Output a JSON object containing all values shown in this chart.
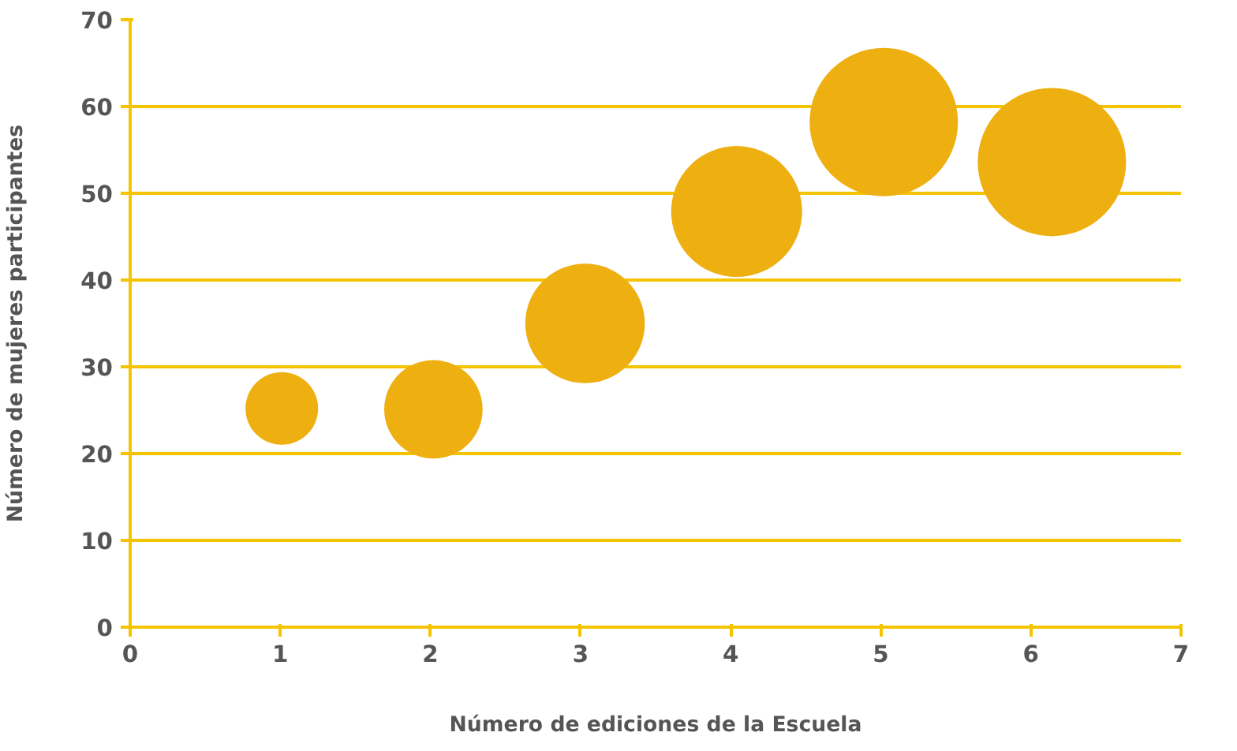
{
  "chart_data": {
    "type": "bubble",
    "xlabel": "Número de ediciones de la Escuela",
    "ylabel": "Número de mujeres participantes",
    "x": [
      1.01,
      2.02,
      3.03,
      4.04,
      5.02,
      6.14
    ],
    "values": [
      25.2,
      25.1,
      35.0,
      47.9,
      58.2,
      53.6
    ],
    "sizes": [
      0.24,
      0.44,
      0.65,
      0.78,
      1,
      1
    ],
    "color": "#eeb010",
    "xlim": [
      0,
      7
    ],
    "xticks": [
      0,
      1,
      2,
      3,
      4,
      5,
      6,
      7
    ],
    "ylim": [
      0,
      70
    ],
    "yticks": [
      0,
      10,
      20,
      30,
      40,
      50,
      60,
      70
    ],
    "grid": "y"
  }
}
